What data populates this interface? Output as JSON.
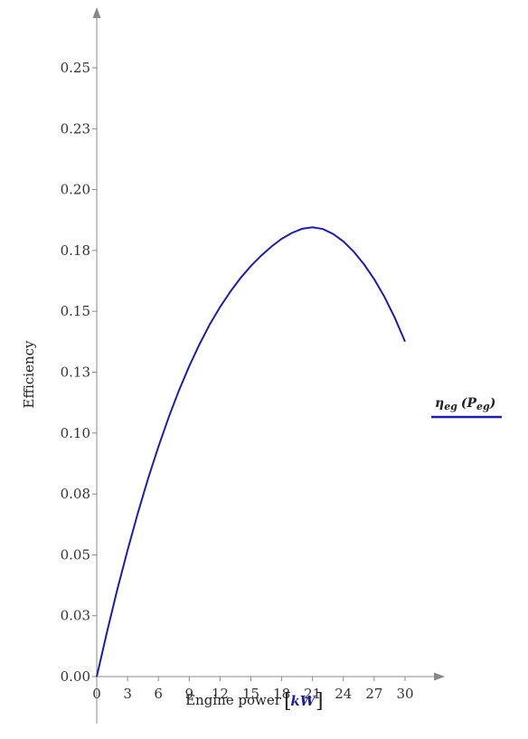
{
  "chart_data": {
    "type": "line",
    "xlabel": "Engine power",
    "xunit": "kW",
    "ylabel": "Efficiency",
    "xlim": [
      0,
      30
    ],
    "ylim": [
      0,
      0.25
    ],
    "xticks": [
      "0",
      "3",
      "6",
      "9",
      "12",
      "15",
      "18",
      "21",
      "24",
      "27",
      "30"
    ],
    "yticks": [
      "0.00",
      "0.03",
      "0.05",
      "0.08",
      "0.10",
      "0.13",
      "0.15",
      "0.18",
      "0.20",
      "0.23",
      "0.25"
    ],
    "ytick_values": [
      0,
      0.025,
      0.05,
      0.075,
      0.1,
      0.125,
      0.15,
      0.175,
      0.2,
      0.225,
      0.25
    ],
    "grid": false,
    "legend_placement": "right",
    "series": [
      {
        "name_main": "η",
        "name_sub": "eg",
        "name_arg_main": "P",
        "name_arg_sub": "eg",
        "color": "#1f1f9a",
        "x": [
          0,
          1,
          2,
          3,
          4,
          5,
          6,
          7,
          8,
          9,
          10,
          11,
          12,
          13,
          14,
          15,
          16,
          17,
          18,
          19,
          20,
          21,
          22,
          23,
          24,
          25,
          26,
          27,
          28,
          29,
          30
        ],
        "y": [
          0,
          0.0184,
          0.0357,
          0.0519,
          0.0672,
          0.0813,
          0.0944,
          0.1065,
          0.1175,
          0.1275,
          0.1365,
          0.1446,
          0.1518,
          0.1581,
          0.1637,
          0.1686,
          0.1729,
          0.1766,
          0.1798,
          0.1822,
          0.1839,
          0.1845,
          0.1838,
          0.1818,
          0.1787,
          0.1745,
          0.1694,
          0.1632,
          0.1559,
          0.1474,
          0.1376
        ]
      }
    ]
  }
}
